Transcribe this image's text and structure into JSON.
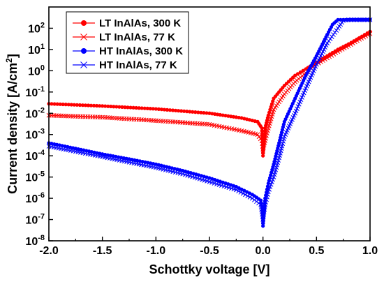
{
  "chart_data": {
    "type": "scatter",
    "title": "",
    "xlabel": "Schottky voltage [V]",
    "ylabel_text": "Current density [A/cm",
    "ylabel_sup": "2",
    "ylabel_end": "]",
    "xlim": [
      -2.0,
      1.0
    ],
    "ylim": [
      1e-08,
      1000
    ],
    "yscale": "log",
    "grid": false,
    "legend_position": "top-left",
    "x_ticks": [
      -2.0,
      -1.5,
      -1.0,
      -0.5,
      0.0,
      0.5,
      1.0
    ],
    "x_tick_labels": [
      "-2.0",
      "-1.5",
      "-1.0",
      "-0.5",
      "0.0",
      "0.5",
      "1.0"
    ],
    "y_tick_exponents": [
      -8,
      -7,
      -6,
      -5,
      -4,
      -3,
      -2,
      -1,
      0,
      1,
      2
    ],
    "y_tick_base": "10",
    "series": [
      {
        "name": "LT InAlAs, 300 K",
        "color": "#ff0000",
        "marker": "circle",
        "points": [
          [
            -2.0,
            0.028
          ],
          [
            -1.5,
            0.022
          ],
          [
            -1.0,
            0.016
          ],
          [
            -0.5,
            0.01
          ],
          [
            -0.2,
            0.006
          ],
          [
            -0.05,
            0.004
          ],
          [
            -0.01,
            0.002
          ],
          [
            0.0,
            0.0001
          ],
          [
            0.02,
            0.002
          ],
          [
            0.05,
            0.008
          ],
          [
            0.1,
            0.05
          ],
          [
            0.2,
            0.2
          ],
          [
            0.3,
            0.6
          ],
          [
            0.4,
            1.2
          ],
          [
            0.5,
            2.5
          ],
          [
            0.6,
            5
          ],
          [
            0.7,
            10
          ],
          [
            0.8,
            18
          ],
          [
            0.9,
            35
          ],
          [
            1.0,
            70
          ]
        ]
      },
      {
        "name": "LT InAlAs, 77 K",
        "color": "#ff0000",
        "marker": "x",
        "points": [
          [
            -2.0,
            0.008
          ],
          [
            -1.5,
            0.0065
          ],
          [
            -1.0,
            0.0045
          ],
          [
            -0.5,
            0.003
          ],
          [
            -0.2,
            0.0015
          ],
          [
            -0.05,
            0.001
          ],
          [
            -0.01,
            0.0005
          ],
          [
            0.0,
            0.0002
          ],
          [
            0.02,
            0.0005
          ],
          [
            0.05,
            0.002
          ],
          [
            0.1,
            0.015
          ],
          [
            0.2,
            0.08
          ],
          [
            0.3,
            0.3
          ],
          [
            0.4,
            0.8
          ],
          [
            0.5,
            2
          ],
          [
            0.6,
            4
          ],
          [
            0.7,
            8
          ],
          [
            0.8,
            15
          ],
          [
            0.9,
            30
          ],
          [
            1.0,
            55
          ]
        ]
      },
      {
        "name": "HT InAlAs, 300 K",
        "color": "#0000ff",
        "marker": "circle",
        "points": [
          [
            -2.0,
            0.0004
          ],
          [
            -1.75,
            0.00022
          ],
          [
            -1.5,
            0.00012
          ],
          [
            -1.25,
            7e-05
          ],
          [
            -1.0,
            4e-05
          ],
          [
            -0.75,
            2e-05
          ],
          [
            -0.5,
            9e-06
          ],
          [
            -0.25,
            3.5e-06
          ],
          [
            -0.1,
            1.5e-06
          ],
          [
            -0.02,
            8e-07
          ],
          [
            -0.005,
            3e-07
          ],
          [
            0.0,
            5e-08
          ],
          [
            0.02,
            1e-06
          ],
          [
            0.05,
            5e-06
          ],
          [
            0.1,
            4e-05
          ],
          [
            0.15,
            0.0004
          ],
          [
            0.2,
            0.004
          ],
          [
            0.3,
            0.05
          ],
          [
            0.4,
            0.6
          ],
          [
            0.5,
            5
          ],
          [
            0.6,
            50
          ],
          [
            0.65,
            150
          ],
          [
            0.7,
            250
          ],
          [
            0.8,
            250
          ],
          [
            0.9,
            250
          ],
          [
            1.0,
            250
          ]
        ]
      },
      {
        "name": "HT InAlAs, 77 K",
        "color": "#0000ff",
        "marker": "x",
        "points": [
          [
            -2.0,
            0.00028
          ],
          [
            -1.75,
            0.00016
          ],
          [
            -1.5,
            9e-05
          ],
          [
            -1.25,
            5e-05
          ],
          [
            -1.0,
            2.8e-05
          ],
          [
            -0.75,
            1.4e-05
          ],
          [
            -0.5,
            6e-06
          ],
          [
            -0.25,
            2.5e-06
          ],
          [
            -0.1,
            1e-06
          ],
          [
            -0.02,
            5e-07
          ],
          [
            0.0,
            1e-07
          ],
          [
            0.02,
            5e-07
          ],
          [
            0.05,
            2e-06
          ],
          [
            0.1,
            1e-05
          ],
          [
            0.15,
            8e-05
          ],
          [
            0.2,
            0.0008
          ],
          [
            0.3,
            0.01
          ],
          [
            0.4,
            0.15
          ],
          [
            0.5,
            2
          ],
          [
            0.6,
            20
          ],
          [
            0.7,
            100
          ],
          [
            0.75,
            230
          ],
          [
            0.8,
            250
          ],
          [
            0.9,
            250
          ],
          [
            1.0,
            250
          ]
        ]
      }
    ]
  }
}
